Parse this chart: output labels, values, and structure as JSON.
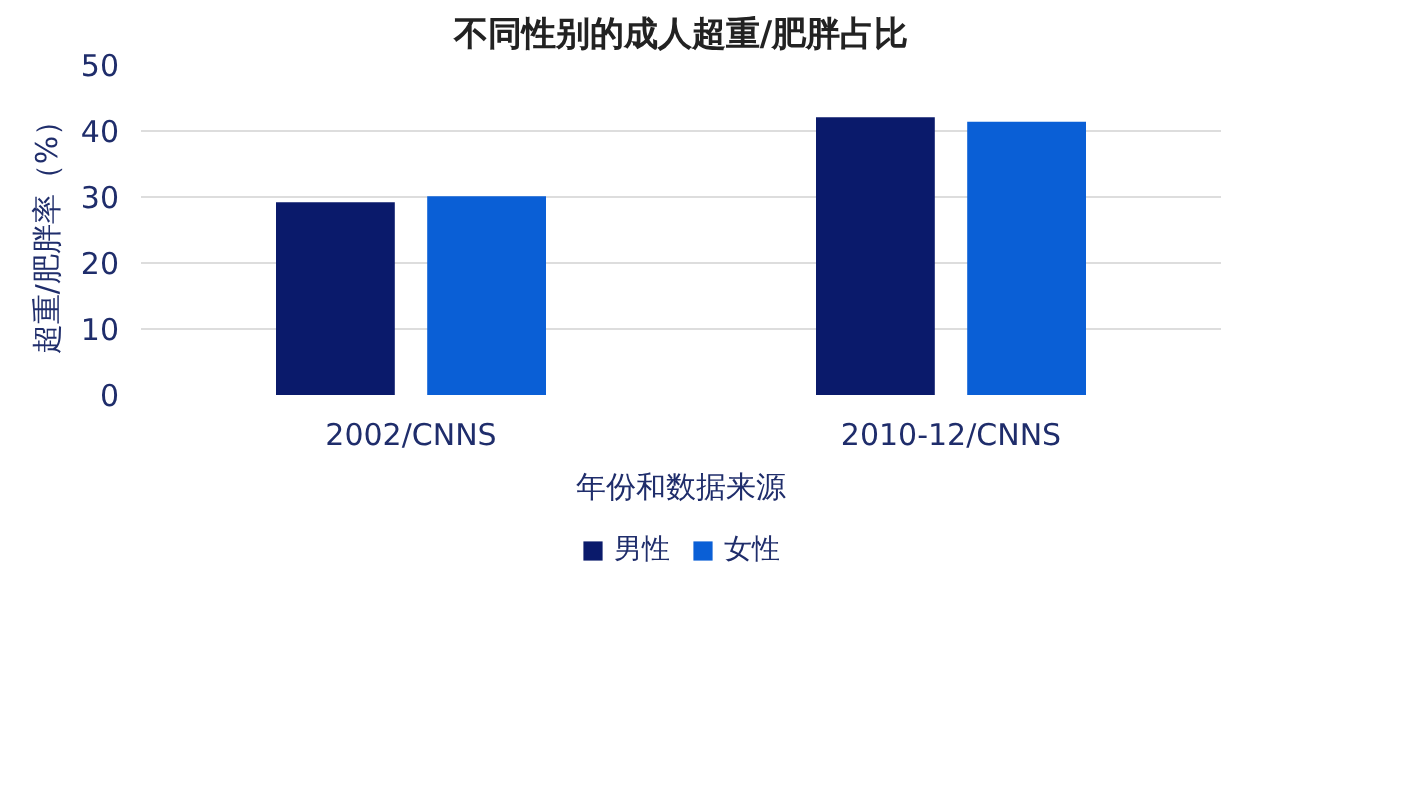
{
  "chart_data": {
    "type": "bar",
    "title": "不同性别的成人超重/肥胖占比",
    "xlabel": "年份和数据来源",
    "ylabel": "超重/肥胖率（%）",
    "categories": [
      "2002/CNNS",
      "2010-12/CNNS"
    ],
    "series": [
      {
        "name": "男性",
        "color": "#0a1a6b",
        "values": [
          29.2,
          42.1
        ]
      },
      {
        "name": "女性",
        "color": "#0a5fd6",
        "values": [
          30.1,
          41.4
        ]
      }
    ],
    "ylim": [
      0,
      50
    ],
    "yticks": [
      0,
      10,
      20,
      30,
      40,
      50
    ],
    "grid": "y",
    "legend": "bottom"
  }
}
